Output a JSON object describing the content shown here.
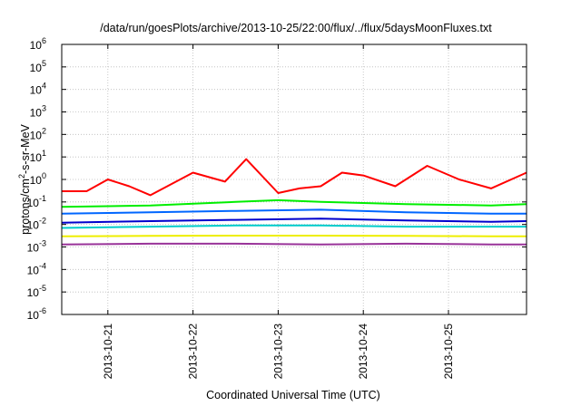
{
  "chart_data": {
    "type": "line",
    "title": "/data/run/goesPlots/archive/2013-10-25/22:00/flux/../flux/5daysMoonFluxes.txt",
    "xlabel": "Coordinated Universal Time (UTC)",
    "ylabel": {
      "base": "protons/cm",
      "sup": "2",
      "rest": "-s-sr-MeV"
    },
    "yscale": "log",
    "ylim": [
      1e-06,
      1000000.0
    ],
    "xlim": [
      "2013-10-20T11:00",
      "2013-10-25T22:00"
    ],
    "grid": true,
    "legend": "none",
    "x_ticks": [
      "2013-10-21",
      "2013-10-22",
      "2013-10-23",
      "2013-10-24",
      "2013-10-25"
    ],
    "y_ticks": [
      {
        "base": "10",
        "exp": "-6"
      },
      {
        "base": "10",
        "exp": "-5"
      },
      {
        "base": "10",
        "exp": "-4"
      },
      {
        "base": "10",
        "exp": "-3"
      },
      {
        "base": "10",
        "exp": "-2"
      },
      {
        "base": "10",
        "exp": "-1"
      },
      {
        "base": "10",
        "exp": "0"
      },
      {
        "base": "10",
        "exp": "1"
      },
      {
        "base": "10",
        "exp": "2"
      },
      {
        "base": "10",
        "exp": "3"
      },
      {
        "base": "10",
        "exp": "4"
      },
      {
        "base": "10",
        "exp": "5"
      },
      {
        "base": "10",
        "exp": "6"
      }
    ],
    "series": [
      {
        "color": "#ff0000",
        "x": [
          "2013-10-20T11:00",
          "2013-10-20T18:00",
          "2013-10-21T00:00",
          "2013-10-21T06:00",
          "2013-10-21T12:00",
          "2013-10-22T00:00",
          "2013-10-22T09:00",
          "2013-10-22T15:00",
          "2013-10-23T00:00",
          "2013-10-23T06:00",
          "2013-10-23T12:00",
          "2013-10-23T18:00",
          "2013-10-24T00:00",
          "2013-10-24T09:00",
          "2013-10-24T18:00",
          "2013-10-25T03:00",
          "2013-10-25T12:00",
          "2013-10-25T22:00"
        ],
        "values": [
          0.3,
          0.3,
          1.0,
          0.5,
          0.2,
          2.0,
          0.8,
          8.0,
          0.25,
          0.4,
          0.5,
          2.0,
          1.5,
          0.5,
          4.0,
          1.0,
          0.4,
          2.0
        ]
      },
      {
        "color": "#00ee00",
        "x": [
          "2013-10-20T11:00",
          "2013-10-21T12:00",
          "2013-10-22T12:00",
          "2013-10-23T00:00",
          "2013-10-23T12:00",
          "2013-10-24T12:00",
          "2013-10-25T12:00",
          "2013-10-25T22:00"
        ],
        "values": [
          0.06,
          0.07,
          0.1,
          0.12,
          0.1,
          0.08,
          0.07,
          0.08
        ]
      },
      {
        "color": "#0066ff",
        "x": [
          "2013-10-20T11:00",
          "2013-10-21T12:00",
          "2013-10-22T12:00",
          "2013-10-23T12:00",
          "2013-10-24T12:00",
          "2013-10-25T12:00",
          "2013-10-25T22:00"
        ],
        "values": [
          0.03,
          0.035,
          0.04,
          0.045,
          0.035,
          0.03,
          0.03
        ]
      },
      {
        "color": "#0000cc",
        "x": [
          "2013-10-20T11:00",
          "2013-10-21T12:00",
          "2013-10-22T12:00",
          "2013-10-23T12:00",
          "2013-10-24T12:00",
          "2013-10-25T12:00",
          "2013-10-25T22:00"
        ],
        "values": [
          0.012,
          0.014,
          0.016,
          0.018,
          0.015,
          0.013,
          0.014
        ]
      },
      {
        "color": "#00cccc",
        "x": [
          "2013-10-20T11:00",
          "2013-10-21T12:00",
          "2013-10-22T12:00",
          "2013-10-23T12:00",
          "2013-10-24T12:00",
          "2013-10-25T12:00",
          "2013-10-25T22:00"
        ],
        "values": [
          0.007,
          0.008,
          0.009,
          0.009,
          0.008,
          0.008,
          0.008
        ]
      },
      {
        "color": "#eeee00",
        "x": [
          "2013-10-20T11:00",
          "2013-10-21T12:00",
          "2013-10-22T12:00",
          "2013-10-23T12:00",
          "2013-10-24T12:00",
          "2013-10-25T12:00",
          "2013-10-25T22:00"
        ],
        "values": [
          0.003,
          0.0031,
          0.0032,
          0.0032,
          0.0031,
          0.003,
          0.003
        ]
      },
      {
        "color": "#993399",
        "x": [
          "2013-10-20T11:00",
          "2013-10-21T12:00",
          "2013-10-22T12:00",
          "2013-10-23T12:00",
          "2013-10-24T12:00",
          "2013-10-25T12:00",
          "2013-10-25T22:00"
        ],
        "values": [
          0.0013,
          0.0014,
          0.0014,
          0.0013,
          0.0014,
          0.0013,
          0.0013
        ]
      }
    ]
  }
}
